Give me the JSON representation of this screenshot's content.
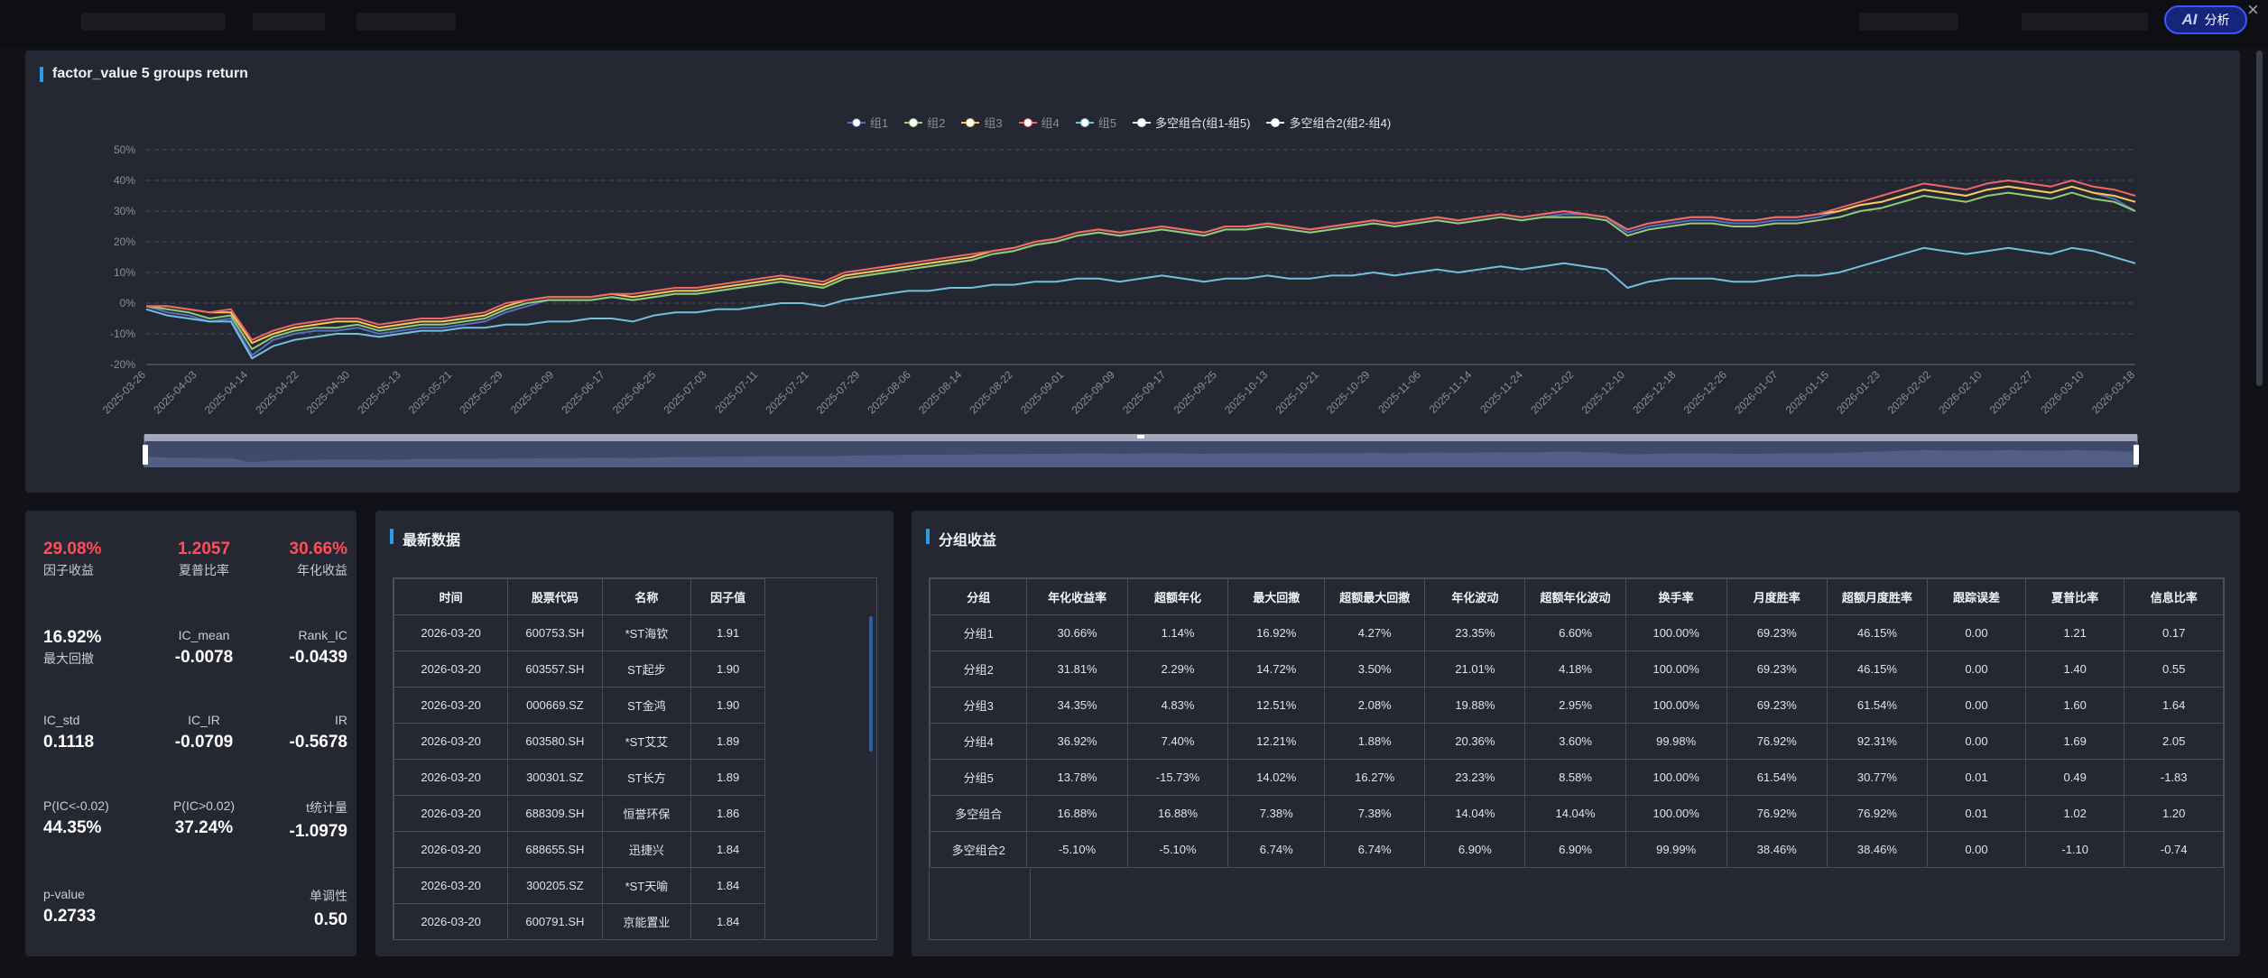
{
  "header": {
    "ai_button_label": "分析"
  },
  "chart_panel": {
    "title": "factor_value 5 groups return",
    "chart_data": {
      "type": "line",
      "yticks": [
        "50%",
        "40%",
        "30%",
        "20%",
        "10%",
        "0%",
        "-10%",
        "-20%"
      ],
      "ylim": [
        -20,
        50
      ],
      "xticks": [
        "2025-03-26",
        "2025-04-03",
        "2025-04-14",
        "2025-04-22",
        "2025-04-30",
        "2025-05-13",
        "2025-05-21",
        "2025-05-29",
        "2025-06-09",
        "2025-06-17",
        "2025-06-25",
        "2025-07-03",
        "2025-07-11",
        "2025-07-21",
        "2025-07-29",
        "2025-08-06",
        "2025-08-14",
        "2025-08-22",
        "2025-09-01",
        "2025-09-09",
        "2025-09-17",
        "2025-09-25",
        "2025-10-13",
        "2025-10-21",
        "2025-10-29",
        "2025-11-06",
        "2025-11-14",
        "2025-11-24",
        "2025-12-02",
        "2025-12-10",
        "2025-12-18",
        "2025-12-26",
        "2026-01-07",
        "2026-01-15",
        "2026-01-23",
        "2026-02-02",
        "2026-02-10",
        "2026-02-27",
        "2026-03-10",
        "2026-03-18"
      ],
      "legend_position": "top-center",
      "grid": true,
      "series": [
        {
          "name": "组1",
          "color": "#5470c6",
          "values": [
            -1,
            -3,
            -4,
            -6,
            -5,
            -17,
            -12,
            -10,
            -9,
            -9,
            -8,
            -10,
            -9,
            -8,
            -8,
            -7,
            -6,
            -3,
            -1,
            1,
            1,
            1,
            2,
            1,
            2,
            3,
            3,
            4,
            5,
            6,
            7,
            6,
            5,
            8,
            9,
            10,
            11,
            12,
            13,
            14,
            16,
            17,
            19,
            20,
            22,
            23,
            22,
            23,
            24,
            23,
            22,
            24,
            24,
            25,
            24,
            23,
            24,
            25,
            26,
            25,
            26,
            27,
            26,
            27,
            28,
            27,
            28,
            29,
            29,
            28,
            23,
            25,
            26,
            27,
            27,
            26,
            26,
            27,
            27,
            28,
            30,
            32,
            33,
            35,
            37,
            36,
            35,
            37,
            38,
            37,
            36,
            38,
            36,
            34,
            30
          ]
        },
        {
          "name": "组2",
          "color": "#91cc75",
          "values": [
            -1,
            -2,
            -3,
            -5,
            -4,
            -15,
            -11,
            -9,
            -8,
            -8,
            -7,
            -9,
            -8,
            -7,
            -7,
            -6,
            -5,
            -2,
            0,
            1,
            1,
            1,
            2,
            1,
            2,
            3,
            3,
            4,
            5,
            6,
            7,
            6,
            5,
            8,
            9,
            10,
            11,
            12,
            13,
            14,
            16,
            17,
            19,
            20,
            22,
            23,
            22,
            23,
            24,
            23,
            22,
            24,
            24,
            25,
            24,
            23,
            24,
            25,
            26,
            25,
            26,
            27,
            26,
            27,
            28,
            27,
            28,
            28,
            28,
            27,
            22,
            24,
            25,
            26,
            26,
            25,
            25,
            26,
            26,
            27,
            28,
            30,
            31,
            33,
            35,
            34,
            33,
            35,
            36,
            35,
            34,
            36,
            34,
            33,
            30
          ]
        },
        {
          "name": "组3",
          "color": "#fac858",
          "values": [
            -1,
            -1,
            -2,
            -3,
            -3,
            -13,
            -10,
            -8,
            -7,
            -6,
            -6,
            -8,
            -7,
            -6,
            -6,
            -5,
            -4,
            -1,
            1,
            2,
            2,
            2,
            3,
            2,
            3,
            4,
            4,
            5,
            6,
            7,
            8,
            7,
            6,
            9,
            10,
            11,
            12,
            13,
            14,
            15,
            17,
            18,
            20,
            21,
            23,
            24,
            23,
            24,
            25,
            24,
            23,
            25,
            25,
            26,
            25,
            24,
            25,
            26,
            27,
            26,
            27,
            28,
            27,
            28,
            29,
            28,
            29,
            30,
            29,
            28,
            24,
            26,
            27,
            28,
            28,
            27,
            27,
            28,
            28,
            29,
            30,
            32,
            33,
            35,
            37,
            36,
            35,
            37,
            38,
            37,
            36,
            38,
            36,
            35,
            33
          ]
        },
        {
          "name": "组4",
          "color": "#ee6666",
          "values": [
            -1,
            -1,
            -2,
            -3,
            -2,
            -12,
            -9,
            -7,
            -6,
            -5,
            -5,
            -7,
            -6,
            -5,
            -5,
            -4,
            -3,
            0,
            1,
            2,
            2,
            2,
            3,
            3,
            4,
            5,
            5,
            6,
            7,
            8,
            9,
            8,
            7,
            10,
            11,
            12,
            13,
            14,
            15,
            16,
            17,
            18,
            20,
            21,
            23,
            24,
            23,
            24,
            25,
            24,
            23,
            25,
            25,
            26,
            25,
            24,
            25,
            26,
            27,
            26,
            27,
            28,
            27,
            28,
            29,
            28,
            29,
            30,
            29,
            28,
            24,
            26,
            27,
            28,
            28,
            27,
            27,
            28,
            28,
            29,
            31,
            33,
            35,
            37,
            39,
            38,
            37,
            39,
            40,
            39,
            38,
            40,
            38,
            37,
            35
          ]
        },
        {
          "name": "组5",
          "color": "#73c0de",
          "values": [
            -2,
            -4,
            -5,
            -6,
            -6,
            -18,
            -14,
            -12,
            -11,
            -10,
            -10,
            -11,
            -10,
            -9,
            -9,
            -8,
            -8,
            -7,
            -7,
            -6,
            -6,
            -5,
            -5,
            -6,
            -4,
            -3,
            -3,
            -2,
            -2,
            -1,
            0,
            0,
            -1,
            1,
            2,
            3,
            4,
            4,
            5,
            5,
            6,
            6,
            7,
            7,
            8,
            8,
            7,
            8,
            9,
            8,
            7,
            8,
            8,
            9,
            8,
            8,
            9,
            9,
            10,
            9,
            10,
            11,
            10,
            11,
            12,
            11,
            12,
            13,
            12,
            11,
            5,
            7,
            8,
            8,
            8,
            7,
            7,
            8,
            9,
            9,
            10,
            12,
            14,
            16,
            18,
            17,
            16,
            17,
            18,
            17,
            16,
            18,
            17,
            15,
            13
          ]
        },
        {
          "name": "多空组合(组1-组5)",
          "color": "#e6e6e6",
          "values": []
        },
        {
          "name": "多空组合2(组2-组4)",
          "color": "#e6e6e6",
          "values": []
        }
      ]
    }
  },
  "metrics": [
    {
      "value": "29.08%",
      "label": "因子收益",
      "red": true
    },
    {
      "value": "1.2057",
      "label": "夏普比率",
      "red": true
    },
    {
      "value": "30.66%",
      "label": "年化收益",
      "red": true
    },
    {
      "value": "16.92%",
      "label": "最大回撤"
    },
    {
      "value": "-0.0078",
      "label": "IC_mean"
    },
    {
      "value": "-0.0439",
      "label": "Rank_IC"
    },
    {
      "value": "0.1118",
      "label": "IC_std"
    },
    {
      "value": "-0.0709",
      "label": "IC_IR"
    },
    {
      "value": "-0.5678",
      "label": "IR"
    },
    {
      "value": "44.35%",
      "label": "P(IC<-0.02)"
    },
    {
      "value": "37.24%",
      "label": "P(IC>0.02)"
    },
    {
      "value": "-1.0979",
      "label": "t统计量"
    },
    {
      "value": "0.2733",
      "label": "p-value"
    },
    {
      "value": "0.50",
      "label": "单调性"
    }
  ],
  "latest": {
    "title": "最新数据",
    "headers": [
      "时间",
      "股票代码",
      "名称",
      "因子值"
    ],
    "rows": [
      [
        "2026-03-20",
        "600753.SH",
        "*ST海钦",
        "1.91"
      ],
      [
        "2026-03-20",
        "603557.SH",
        "ST起步",
        "1.90"
      ],
      [
        "2026-03-20",
        "000669.SZ",
        "ST金鸿",
        "1.90"
      ],
      [
        "2026-03-20",
        "603580.SH",
        "*ST艾艾",
        "1.89"
      ],
      [
        "2026-03-20",
        "300301.SZ",
        "ST长方",
        "1.89"
      ],
      [
        "2026-03-20",
        "688309.SH",
        "恒誉环保",
        "1.86"
      ],
      [
        "2026-03-20",
        "688655.SH",
        "迅捷兴",
        "1.84"
      ],
      [
        "2026-03-20",
        "300205.SZ",
        "*ST天喻",
        "1.84"
      ],
      [
        "2026-03-20",
        "600791.SH",
        "京能置业",
        "1.84"
      ]
    ]
  },
  "groups": {
    "title": "分组收益",
    "headers": [
      "分组",
      "年化收益率",
      "超额年化",
      "最大回撤",
      "超额最大回撤",
      "年化波动",
      "超额年化波动",
      "换手率",
      "月度胜率",
      "超额月度胜率",
      "跟踪误差",
      "夏普比率",
      "信息比率"
    ],
    "rows": [
      [
        "分组1",
        "30.66%",
        "1.14%",
        "16.92%",
        "4.27%",
        "23.35%",
        "6.60%",
        "100.00%",
        "69.23%",
        "46.15%",
        "0.00",
        "1.21",
        "0.17"
      ],
      [
        "分组2",
        "31.81%",
        "2.29%",
        "14.72%",
        "3.50%",
        "21.01%",
        "4.18%",
        "100.00%",
        "69.23%",
        "46.15%",
        "0.00",
        "1.40",
        "0.55"
      ],
      [
        "分组3",
        "34.35%",
        "4.83%",
        "12.51%",
        "2.08%",
        "19.88%",
        "2.95%",
        "100.00%",
        "69.23%",
        "61.54%",
        "0.00",
        "1.60",
        "1.64"
      ],
      [
        "分组4",
        "36.92%",
        "7.40%",
        "12.21%",
        "1.88%",
        "20.36%",
        "3.60%",
        "99.98%",
        "76.92%",
        "92.31%",
        "0.00",
        "1.69",
        "2.05"
      ],
      [
        "分组5",
        "13.78%",
        "-15.73%",
        "14.02%",
        "16.27%",
        "23.23%",
        "8.58%",
        "100.00%",
        "61.54%",
        "30.77%",
        "0.01",
        "0.49",
        "-1.83"
      ],
      [
        "多空组合",
        "16.88%",
        "16.88%",
        "7.38%",
        "7.38%",
        "14.04%",
        "14.04%",
        "100.00%",
        "76.92%",
        "76.92%",
        "0.01",
        "1.02",
        "1.20"
      ],
      [
        "多空组合2",
        "-5.10%",
        "-5.10%",
        "6.74%",
        "6.74%",
        "6.90%",
        "6.90%",
        "99.99%",
        "38.46%",
        "38.46%",
        "0.00",
        "-1.10",
        "-0.74"
      ]
    ]
  }
}
